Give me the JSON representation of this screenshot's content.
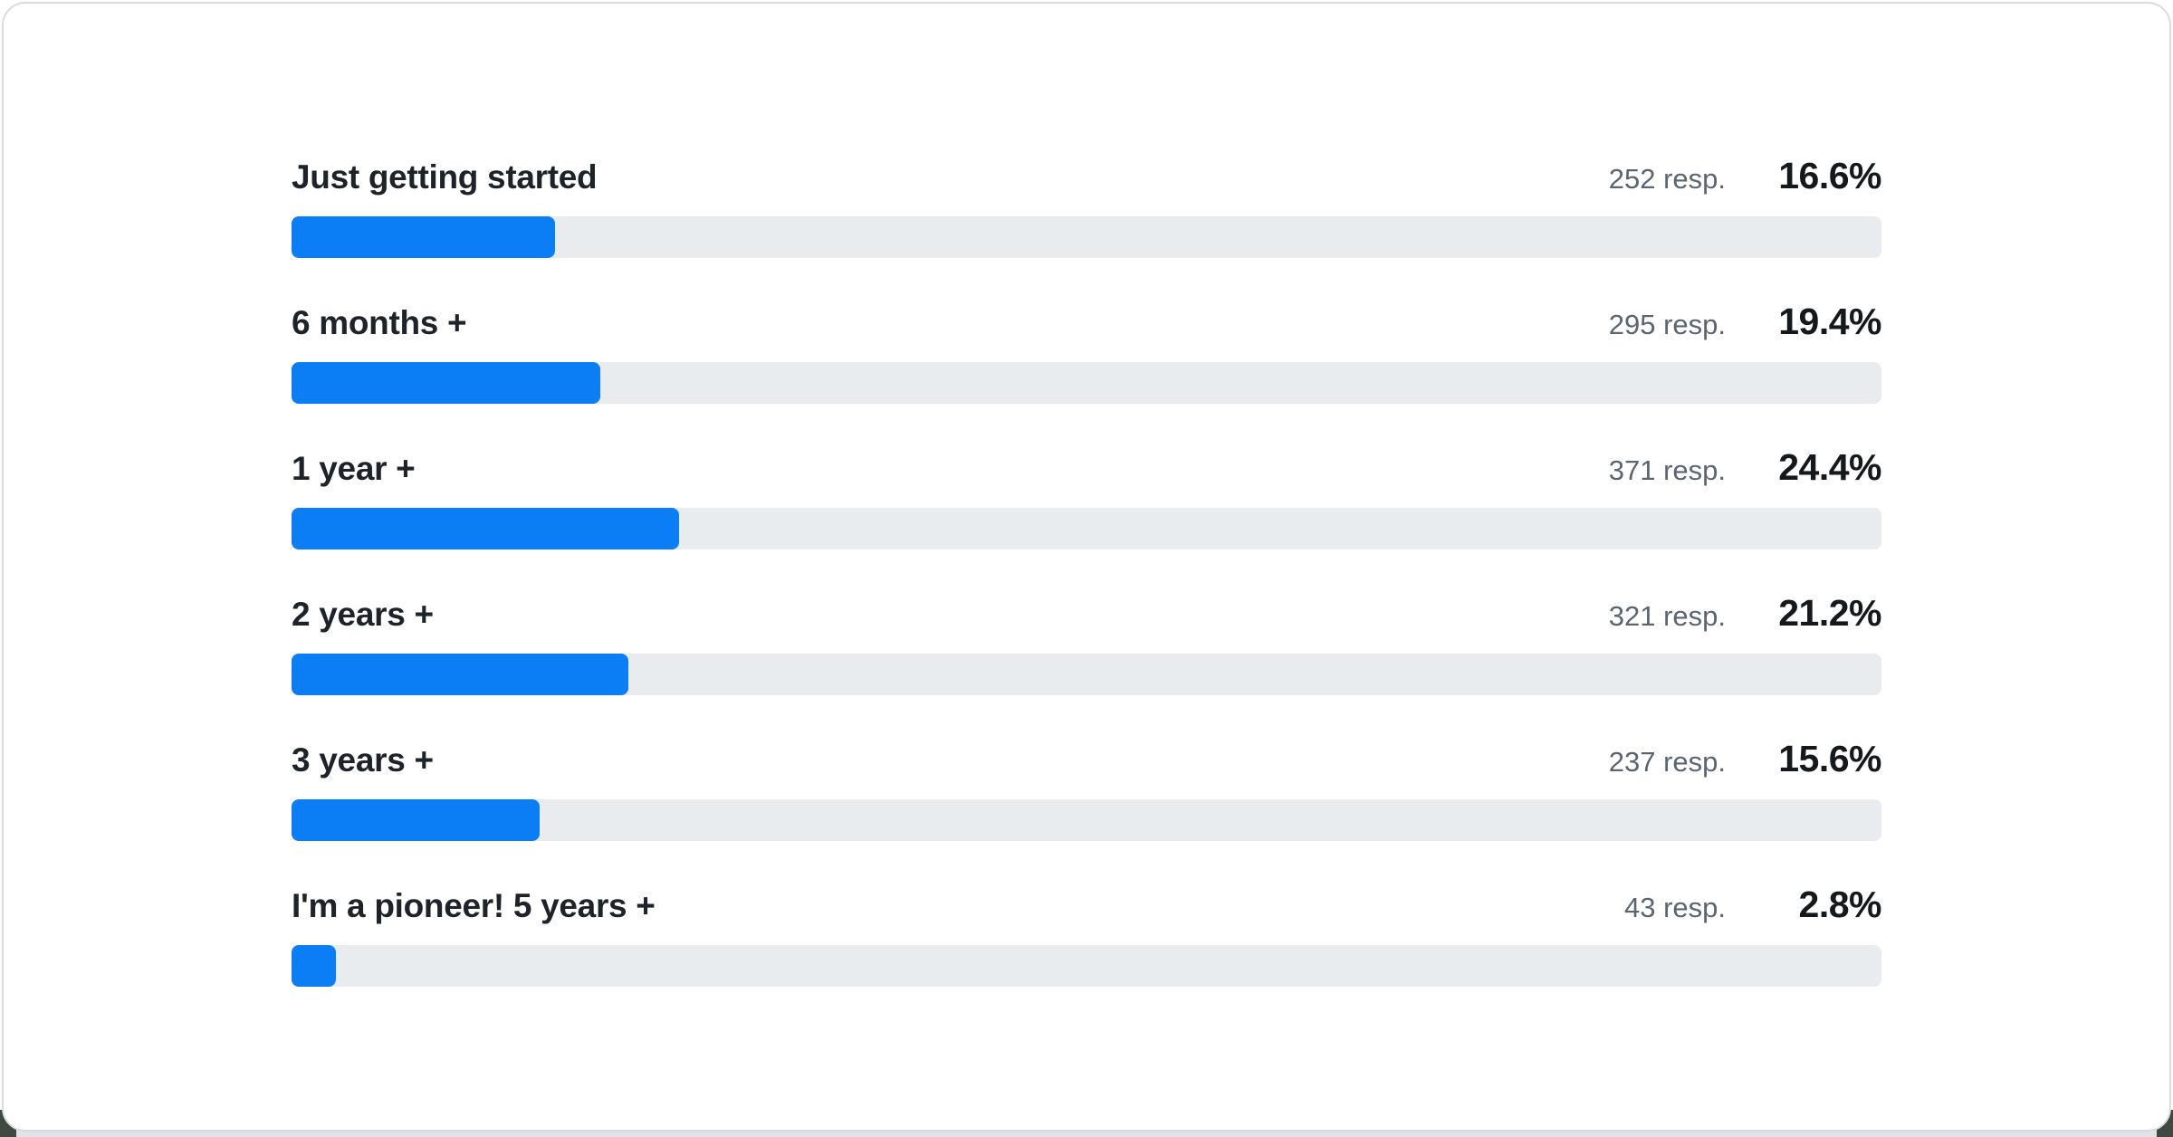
{
  "colors": {
    "bar_fill": "#0b7ef5",
    "bar_track": "#e9ecef",
    "label_text": "#1d2329",
    "resp_text": "#5a6570",
    "pct_text": "#16191c",
    "card_border": "#d8dce1",
    "card_bg": "#ffffff"
  },
  "chart_data": {
    "type": "bar",
    "orientation": "horizontal",
    "unit_suffix": " resp.",
    "categories": [
      "Just getting started",
      "6 months +",
      "1 year +",
      "2 years +",
      "3 years +",
      "I'm a pioneer! 5 years +"
    ],
    "series": [
      {
        "name": "respondents",
        "values": [
          252,
          295,
          371,
          321,
          237,
          43
        ]
      },
      {
        "name": "percent",
        "values": [
          16.6,
          19.4,
          24.4,
          21.2,
          15.6,
          2.8
        ]
      }
    ],
    "rows": [
      {
        "label": "Just getting started",
        "resp": "252 resp.",
        "pct_label": "16.6%",
        "pct": 16.6
      },
      {
        "label": "6 months +",
        "resp": "295 resp.",
        "pct_label": "19.4%",
        "pct": 19.4
      },
      {
        "label": "1 year +",
        "resp": "371 resp.",
        "pct_label": "24.4%",
        "pct": 24.4
      },
      {
        "label": "2 years +",
        "resp": "321 resp.",
        "pct_label": "21.2%",
        "pct": 21.2
      },
      {
        "label": "3 years +",
        "resp": "237 resp.",
        "pct_label": "15.6%",
        "pct": 15.6
      },
      {
        "label": "I'm a pioneer! 5 years +",
        "resp": "43 resp.",
        "pct_label": "2.8%",
        "pct": 2.8
      }
    ],
    "xlim": [
      0,
      100
    ],
    "grid": false,
    "legend": false,
    "title": ""
  }
}
